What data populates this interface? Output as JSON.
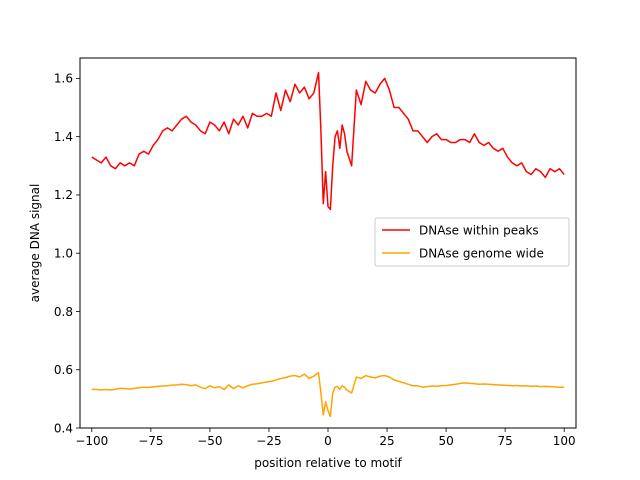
{
  "chart_data": {
    "type": "line",
    "xlabel": "position relative to motif",
    "ylabel": "average DNA signal",
    "xlim": [
      -105,
      105
    ],
    "ylim": [
      0.4,
      1.67
    ],
    "xticks": [
      -100,
      -75,
      -50,
      -25,
      0,
      25,
      50,
      75,
      100
    ],
    "xtick_labels": [
      "−100",
      "−75",
      "−50",
      "−25",
      "0",
      "25",
      "50",
      "75",
      "100"
    ],
    "yticks": [
      0.4,
      0.6,
      0.8,
      1.0,
      1.2,
      1.4,
      1.6
    ],
    "ytick_labels": [
      "0.4",
      "0.6",
      "0.8",
      "1.0",
      "1.2",
      "1.4",
      "1.6"
    ],
    "grid": false,
    "legend_position": "center-right",
    "series": [
      {
        "name": "DNAse within peaks",
        "color": "#ff0000",
        "x": [
          -100,
          -98,
          -96,
          -94,
          -92,
          -90,
          -88,
          -86,
          -84,
          -82,
          -80,
          -78,
          -76,
          -74,
          -72,
          -70,
          -68,
          -66,
          -64,
          -62,
          -60,
          -58,
          -56,
          -54,
          -52,
          -50,
          -48,
          -46,
          -44,
          -42,
          -40,
          -38,
          -36,
          -34,
          -32,
          -30,
          -28,
          -26,
          -24,
          -22,
          -20,
          -18,
          -16,
          -14,
          -12,
          -10,
          -8,
          -6,
          -4,
          -3,
          -2,
          -1,
          0,
          1,
          2,
          3,
          4,
          5,
          6,
          7,
          8,
          10,
          12,
          14,
          16,
          18,
          20,
          22,
          24,
          26,
          28,
          30,
          32,
          34,
          36,
          38,
          40,
          42,
          44,
          46,
          48,
          50,
          52,
          54,
          56,
          58,
          60,
          62,
          64,
          66,
          68,
          70,
          72,
          74,
          76,
          78,
          80,
          82,
          84,
          86,
          88,
          90,
          92,
          94,
          96,
          98,
          100
        ],
        "values": [
          1.33,
          1.32,
          1.31,
          1.33,
          1.3,
          1.29,
          1.31,
          1.3,
          1.31,
          1.3,
          1.34,
          1.35,
          1.34,
          1.37,
          1.39,
          1.42,
          1.43,
          1.42,
          1.44,
          1.46,
          1.47,
          1.45,
          1.44,
          1.42,
          1.41,
          1.45,
          1.44,
          1.42,
          1.45,
          1.41,
          1.46,
          1.44,
          1.47,
          1.43,
          1.48,
          1.47,
          1.47,
          1.48,
          1.47,
          1.55,
          1.49,
          1.56,
          1.52,
          1.58,
          1.55,
          1.57,
          1.53,
          1.55,
          1.62,
          1.42,
          1.17,
          1.28,
          1.16,
          1.15,
          1.3,
          1.4,
          1.42,
          1.36,
          1.44,
          1.41,
          1.35,
          1.3,
          1.56,
          1.51,
          1.59,
          1.56,
          1.55,
          1.58,
          1.6,
          1.56,
          1.5,
          1.5,
          1.48,
          1.46,
          1.42,
          1.42,
          1.4,
          1.38,
          1.4,
          1.41,
          1.39,
          1.39,
          1.38,
          1.38,
          1.39,
          1.39,
          1.38,
          1.41,
          1.38,
          1.37,
          1.38,
          1.36,
          1.35,
          1.36,
          1.33,
          1.31,
          1.3,
          1.31,
          1.28,
          1.27,
          1.29,
          1.28,
          1.26,
          1.29,
          1.28,
          1.29,
          1.27
        ]
      },
      {
        "name": "DNAse genome wide",
        "color": "#ffa500",
        "x": [
          -100,
          -98,
          -96,
          -94,
          -92,
          -90,
          -88,
          -86,
          -84,
          -82,
          -80,
          -78,
          -76,
          -74,
          -72,
          -70,
          -68,
          -66,
          -64,
          -62,
          -60,
          -58,
          -56,
          -54,
          -52,
          -50,
          -48,
          -46,
          -44,
          -42,
          -40,
          -38,
          -36,
          -34,
          -32,
          -30,
          -28,
          -26,
          -24,
          -22,
          -20,
          -18,
          -16,
          -14,
          -12,
          -10,
          -8,
          -6,
          -4,
          -3,
          -2,
          -1,
          0,
          1,
          2,
          3,
          4,
          5,
          6,
          7,
          8,
          10,
          12,
          14,
          16,
          18,
          20,
          22,
          24,
          26,
          28,
          30,
          32,
          34,
          36,
          38,
          40,
          42,
          44,
          46,
          48,
          50,
          52,
          54,
          56,
          58,
          60,
          62,
          64,
          66,
          68,
          70,
          72,
          74,
          76,
          78,
          80,
          82,
          84,
          86,
          88,
          90,
          92,
          94,
          96,
          98,
          100
        ],
        "values": [
          0.533,
          0.532,
          0.531,
          0.532,
          0.531,
          0.533,
          0.536,
          0.535,
          0.534,
          0.536,
          0.538,
          0.54,
          0.539,
          0.541,
          0.543,
          0.544,
          0.545,
          0.547,
          0.548,
          0.55,
          0.549,
          0.545,
          0.548,
          0.54,
          0.535,
          0.545,
          0.538,
          0.542,
          0.532,
          0.548,
          0.535,
          0.545,
          0.538,
          0.545,
          0.55,
          0.552,
          0.555,
          0.558,
          0.56,
          0.565,
          0.57,
          0.573,
          0.578,
          0.58,
          0.575,
          0.585,
          0.57,
          0.578,
          0.59,
          0.52,
          0.445,
          0.49,
          0.46,
          0.44,
          0.52,
          0.54,
          0.543,
          0.532,
          0.545,
          0.54,
          0.53,
          0.52,
          0.575,
          0.57,
          0.58,
          0.575,
          0.572,
          0.578,
          0.58,
          0.575,
          0.565,
          0.56,
          0.555,
          0.55,
          0.545,
          0.545,
          0.54,
          0.542,
          0.544,
          0.543,
          0.545,
          0.546,
          0.548,
          0.55,
          0.553,
          0.555,
          0.553,
          0.552,
          0.55,
          0.551,
          0.55,
          0.549,
          0.548,
          0.547,
          0.546,
          0.545,
          0.546,
          0.544,
          0.545,
          0.543,
          0.544,
          0.542,
          0.543,
          0.542,
          0.541,
          0.54,
          0.54
        ]
      }
    ]
  }
}
